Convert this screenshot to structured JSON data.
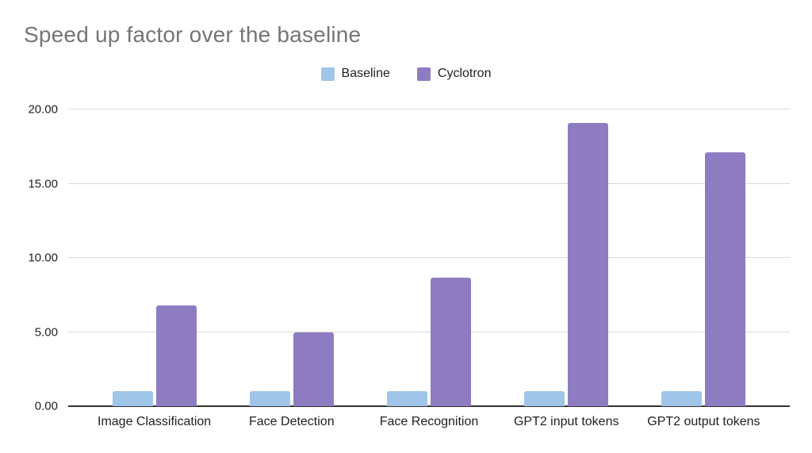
{
  "title": "Speed up factor over the baseline",
  "legend": {
    "items": [
      {
        "label": "Baseline",
        "color": "#9fc5e8"
      },
      {
        "label": "Cyclotron",
        "color": "#8e7cc3"
      }
    ]
  },
  "colors": {
    "title_text": "#757575",
    "axis_text": "#212121",
    "gridline": "#d9d9d9",
    "axis_line": "#333333",
    "baseline_series": "#9fc5e8",
    "cyclotron_series": "#8e7cc3"
  },
  "chart_data": {
    "type": "bar",
    "title": "Speed up factor over the baseline",
    "categories": [
      "Image Classification",
      "Face Detection",
      "Face Recognition",
      "GPT2 input tokens",
      "GPT2 output tokens"
    ],
    "series": [
      {
        "name": "Baseline",
        "color": "#9fc5e8",
        "values": [
          1.0,
          1.0,
          1.0,
          1.0,
          1.0
        ]
      },
      {
        "name": "Cyclotron",
        "color": "#8e7cc3",
        "values": [
          6.8,
          4.95,
          8.65,
          19.1,
          17.1
        ]
      }
    ],
    "xlabel": "",
    "ylabel": "",
    "ylim": [
      0,
      20
    ],
    "yticks": [
      0,
      5,
      10,
      15,
      20
    ],
    "ytick_labels": [
      "0.00",
      "5.00",
      "10.00",
      "15.00",
      "20.00"
    ],
    "grid": true,
    "legend_position": "top"
  }
}
